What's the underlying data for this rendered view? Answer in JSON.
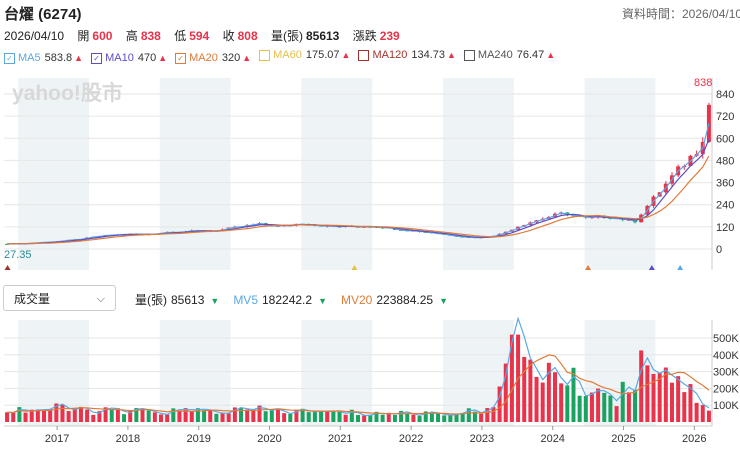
{
  "header": {
    "title": "台燿 (6274)",
    "data_time": "資料時間：2026/04/10"
  },
  "ohlc": {
    "date": "2026/04/10",
    "open_label": "開",
    "open": "600",
    "high_label": "高",
    "high": "838",
    "low_label": "低",
    "low": "594",
    "close_label": "收",
    "close": "808",
    "volume_label": "量(張)",
    "volume": "85613",
    "change_label": "漲跌",
    "change": "239"
  },
  "ma_legend": [
    {
      "name": "MA5",
      "value": "583.8",
      "color": "#5aa9e6",
      "checked": true
    },
    {
      "name": "MA10",
      "value": "470",
      "color": "#5b4fc7",
      "checked": true
    },
    {
      "name": "MA20",
      "value": "320",
      "color": "#e07b39",
      "checked": true
    },
    {
      "name": "MA60",
      "value": "175.07",
      "color": "#e6c14a",
      "checked": false
    },
    {
      "name": "MA120",
      "value": "134.73",
      "color": "#a0362b",
      "checked": false
    },
    {
      "name": "MA240",
      "value": "76.47",
      "color": "#555555",
      "checked": false
    }
  ],
  "watermark": "yahoo!股市",
  "price_axis": [
    "840",
    "720",
    "600",
    "480",
    "360",
    "240",
    "120",
    "0"
  ],
  "price_annotations": {
    "max_label": "838",
    "min_label": "27.35"
  },
  "volume_selector": {
    "selected": "成交量"
  },
  "volume_legend": {
    "vol_label": "量(張)",
    "vol": "85613",
    "mv5_label": "MV5",
    "mv5": "182242.2",
    "mv5_color": "#5aa9e6",
    "mv20_label": "MV20",
    "mv20": "223884.25",
    "mv20_color": "#e07b39"
  },
  "volume_axis": [
    "500K",
    "400K",
    "300K",
    "200K",
    "100K"
  ],
  "x_axis": [
    "2017",
    "2018",
    "2019",
    "2020",
    "2021",
    "2022",
    "2023",
    "2024",
    "2025",
    "2026"
  ],
  "colors": {
    "up": "#e8334a",
    "down": "#1aa260",
    "band": "#eef4f6",
    "grid": "#e6e6e6"
  },
  "chart_data": {
    "type": "candlestick",
    "title": "",
    "x_ticks": [
      "2017",
      "2018",
      "2019",
      "2020",
      "2021",
      "2022",
      "2023",
      "2024",
      "2025",
      "2026"
    ],
    "price_range": [
      0,
      840
    ],
    "volume_range": [
      0,
      500000
    ],
    "price_path": [
      {
        "t": 2016.3,
        "p": 28
      },
      {
        "t": 2016.6,
        "p": 30
      },
      {
        "t": 2017.0,
        "p": 40
      },
      {
        "t": 2017.3,
        "p": 50
      },
      {
        "t": 2017.7,
        "p": 72
      },
      {
        "t": 2018.0,
        "p": 80
      },
      {
        "t": 2018.3,
        "p": 78
      },
      {
        "t": 2018.6,
        "p": 92
      },
      {
        "t": 2019.0,
        "p": 97
      },
      {
        "t": 2019.3,
        "p": 100
      },
      {
        "t": 2019.6,
        "p": 118
      },
      {
        "t": 2019.9,
        "p": 135
      },
      {
        "t": 2020.2,
        "p": 122
      },
      {
        "t": 2020.5,
        "p": 140
      },
      {
        "t": 2020.8,
        "p": 125
      },
      {
        "t": 2021.1,
        "p": 120
      },
      {
        "t": 2021.5,
        "p": 125
      },
      {
        "t": 2021.8,
        "p": 110
      },
      {
        "t": 2022.1,
        "p": 98
      },
      {
        "t": 2022.4,
        "p": 85
      },
      {
        "t": 2022.7,
        "p": 70
      },
      {
        "t": 2023.0,
        "p": 60
      },
      {
        "t": 2023.3,
        "p": 80
      },
      {
        "t": 2023.6,
        "p": 130
      },
      {
        "t": 2023.9,
        "p": 165
      },
      {
        "t": 2024.2,
        "p": 195
      },
      {
        "t": 2024.5,
        "p": 165
      },
      {
        "t": 2024.8,
        "p": 175
      },
      {
        "t": 2025.0,
        "p": 165
      },
      {
        "t": 2025.2,
        "p": 145
      },
      {
        "t": 2025.4,
        "p": 240
      },
      {
        "t": 2025.6,
        "p": 330
      },
      {
        "t": 2025.8,
        "p": 420
      },
      {
        "t": 2026.0,
        "p": 500
      },
      {
        "t": 2026.15,
        "p": 570
      },
      {
        "t": 2026.27,
        "p": 808
      }
    ],
    "volume_path": [
      {
        "t": 2016.3,
        "v": 70000
      },
      {
        "t": 2017.0,
        "v": 80000
      },
      {
        "t": 2018.0,
        "v": 60000
      },
      {
        "t": 2019.0,
        "v": 65000
      },
      {
        "t": 2020.0,
        "v": 70000
      },
      {
        "t": 2021.0,
        "v": 55000
      },
      {
        "t": 2022.0,
        "v": 50000
      },
      {
        "t": 2023.0,
        "v": 60000
      },
      {
        "t": 2023.3,
        "v": 180000
      },
      {
        "t": 2023.5,
        "v": 500000
      },
      {
        "t": 2023.8,
        "v": 350000
      },
      {
        "t": 2024.2,
        "v": 250000
      },
      {
        "t": 2024.6,
        "v": 200000
      },
      {
        "t": 2025.0,
        "v": 150000
      },
      {
        "t": 2025.4,
        "v": 420000
      },
      {
        "t": 2025.7,
        "v": 320000
      },
      {
        "t": 2026.0,
        "v": 180000
      },
      {
        "t": 2026.27,
        "v": 85613
      }
    ],
    "markers": [
      {
        "t": 2016.35,
        "color": "#a0362b"
      },
      {
        "t": 2021.25,
        "color": "#e6c14a"
      },
      {
        "t": 2024.55,
        "color": "#e07b39"
      },
      {
        "t": 2025.45,
        "color": "#5b4fc7"
      },
      {
        "t": 2025.85,
        "color": "#5aa9e6"
      }
    ]
  }
}
